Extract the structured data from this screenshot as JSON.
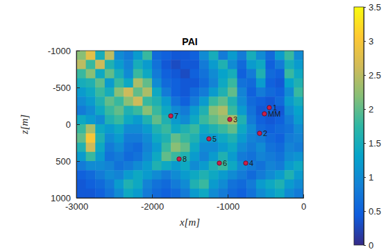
{
  "chart_data": {
    "type": "heatmap",
    "title": "PAI",
    "xlabel": "x[m]",
    "ylabel": "z[m]",
    "xlim": [
      -3000,
      0
    ],
    "ylim": [
      -1000,
      1000
    ],
    "xticks": [
      -3000,
      -2000,
      -1000,
      0
    ],
    "yticks": [
      -1000,
      -500,
      0,
      500,
      1000
    ],
    "x": [
      -2937.5,
      -2812.5,
      -2687.5,
      -2562.5,
      -2437.5,
      -2312.5,
      -2187.5,
      -2062.5,
      -1937.5,
      -1812.5,
      -1687.5,
      -1562.5,
      -1437.5,
      -1312.5,
      -1187.5,
      -1062.5,
      -937.5,
      -812.5,
      -687.5,
      -562.5,
      -437.5,
      -312.5,
      -187.5,
      -62.5
    ],
    "y": [
      -937.5,
      -812.5,
      -687.5,
      -562.5,
      -437.5,
      -312.5,
      -187.5,
      -62.5,
      62.5,
      187.5,
      312.5,
      437.5,
      562.5,
      687.5,
      812.5,
      937.5
    ],
    "z": [
      [
        2.2,
        2.8,
        1.5,
        2.5,
        1.0,
        0.8,
        1.2,
        1.8,
        0.6,
        0.5,
        0.4,
        0.4,
        0.5,
        1.0,
        1.5,
        0.8,
        1.2,
        0.8,
        1.5,
        1.0,
        0.6,
        1.2,
        1.8,
        1.0
      ],
      [
        2.5,
        1.8,
        2.6,
        1.6,
        1.2,
        0.9,
        1.5,
        1.2,
        0.7,
        0.4,
        0.3,
        0.4,
        0.4,
        0.8,
        1.2,
        1.6,
        1.0,
        0.6,
        1.2,
        1.4,
        0.5,
        0.8,
        1.5,
        1.2
      ],
      [
        1.8,
        2.2,
        1.4,
        2.0,
        1.5,
        1.0,
        1.8,
        1.4,
        0.8,
        0.5,
        0.4,
        0.3,
        0.5,
        0.7,
        1.0,
        1.3,
        1.5,
        0.5,
        0.8,
        1.6,
        0.6,
        0.5,
        1.8,
        1.4
      ],
      [
        1.5,
        1.6,
        2.0,
        1.2,
        1.8,
        1.4,
        2.4,
        2.0,
        1.0,
        0.6,
        0.5,
        0.4,
        0.4,
        0.6,
        0.9,
        1.4,
        1.8,
        0.7,
        0.6,
        1.2,
        0.5,
        0.4,
        1.3,
        1.6
      ],
      [
        1.2,
        1.4,
        1.8,
        1.5,
        2.2,
        2.6,
        2.0,
        2.4,
        1.4,
        0.8,
        0.5,
        0.4,
        0.6,
        0.8,
        1.2,
        1.6,
        2.0,
        0.9,
        0.5,
        0.8,
        0.6,
        0.5,
        1.0,
        1.8
      ],
      [
        1.0,
        1.2,
        1.6,
        2.0,
        1.8,
        2.2,
        2.6,
        1.8,
        1.6,
        1.2,
        0.7,
        0.5,
        0.8,
        1.2,
        1.8,
        2.0,
        1.6,
        1.0,
        0.6,
        0.5,
        0.4,
        0.6,
        1.2,
        1.5
      ],
      [
        0.8,
        1.0,
        1.4,
        1.8,
        2.0,
        1.6,
        1.8,
        2.2,
        1.8,
        1.4,
        1.0,
        0.8,
        1.2,
        1.6,
        2.2,
        2.4,
        1.8,
        1.2,
        0.7,
        0.4,
        0.5,
        0.4,
        1.0,
        1.3
      ],
      [
        1.4,
        1.2,
        1.0,
        1.6,
        1.8,
        1.4,
        1.2,
        1.6,
        2.0,
        1.6,
        1.2,
        1.0,
        1.4,
        1.8,
        2.0,
        2.2,
        2.4,
        1.6,
        0.8,
        0.5,
        0.4,
        0.5,
        0.8,
        1.2
      ],
      [
        1.8,
        2.4,
        1.4,
        1.2,
        1.4,
        1.0,
        1.0,
        1.2,
        1.6,
        1.8,
        1.4,
        1.6,
        1.8,
        1.4,
        1.6,
        1.8,
        2.0,
        1.4,
        1.0,
        0.6,
        0.5,
        0.6,
        0.7,
        1.0
      ],
      [
        2.0,
        3.0,
        1.6,
        1.0,
        1.2,
        0.8,
        0.8,
        1.0,
        1.4,
        1.6,
        2.0,
        1.8,
        1.6,
        1.2,
        1.2,
        1.4,
        1.6,
        1.2,
        0.9,
        0.8,
        0.6,
        0.5,
        0.8,
        0.9
      ],
      [
        1.6,
        2.6,
        1.4,
        0.8,
        1.0,
        0.7,
        0.6,
        0.9,
        1.2,
        1.8,
        2.2,
        2.0,
        1.4,
        1.0,
        1.0,
        1.2,
        1.4,
        1.0,
        0.8,
        1.0,
        0.7,
        0.6,
        0.9,
        0.8
      ],
      [
        1.2,
        1.8,
        1.2,
        0.7,
        0.8,
        0.6,
        0.7,
        1.0,
        1.4,
        2.0,
        1.8,
        1.6,
        1.2,
        0.9,
        1.2,
        1.6,
        1.2,
        0.8,
        0.7,
        0.9,
        0.8,
        0.7,
        1.0,
        1.1
      ],
      [
        0.8,
        1.0,
        1.0,
        0.9,
        0.7,
        0.8,
        1.0,
        1.2,
        1.6,
        1.4,
        1.2,
        1.4,
        1.0,
        1.2,
        1.6,
        1.8,
        1.4,
        1.0,
        0.8,
        0.7,
        0.9,
        0.8,
        1.2,
        1.4
      ],
      [
        0.5,
        0.6,
        0.8,
        1.0,
        0.9,
        1.2,
        1.4,
        1.2,
        1.0,
        0.8,
        1.0,
        1.2,
        1.4,
        1.6,
        1.4,
        1.2,
        1.0,
        0.8,
        0.6,
        0.8,
        1.0,
        1.2,
        1.6,
        1.2
      ],
      [
        0.4,
        0.5,
        0.6,
        0.8,
        1.2,
        1.6,
        1.4,
        0.9,
        0.7,
        0.6,
        0.8,
        1.0,
        1.6,
        1.8,
        1.2,
        1.0,
        0.7,
        0.6,
        0.8,
        1.2,
        1.4,
        1.6,
        1.2,
        1.0
      ],
      [
        0.4,
        0.4,
        0.5,
        0.7,
        1.0,
        1.4,
        1.2,
        0.8,
        0.6,
        0.5,
        0.6,
        0.8,
        1.2,
        1.4,
        1.0,
        0.8,
        0.6,
        0.5,
        0.7,
        1.0,
        1.2,
        1.4,
        1.0,
        0.8
      ]
    ],
    "colorbar": {
      "lim": [
        0,
        3.5
      ],
      "ticks": [
        0,
        0.5,
        1,
        1.5,
        2,
        2.5,
        3,
        3.5
      ]
    },
    "points": {
      "labels": [
        "1",
        "MM",
        "2",
        "3",
        "4",
        "5",
        "6",
        "7",
        "8"
      ],
      "x": [
        -450,
        -514,
        -578,
        -972,
        -761,
        -1248,
        -1110,
        -1752,
        -1642
      ],
      "y": [
        -226,
        -142,
        123,
        -66,
        528,
        198,
        528,
        -113,
        472
      ],
      "color": "#cc1f4a",
      "marker": "circle"
    }
  }
}
